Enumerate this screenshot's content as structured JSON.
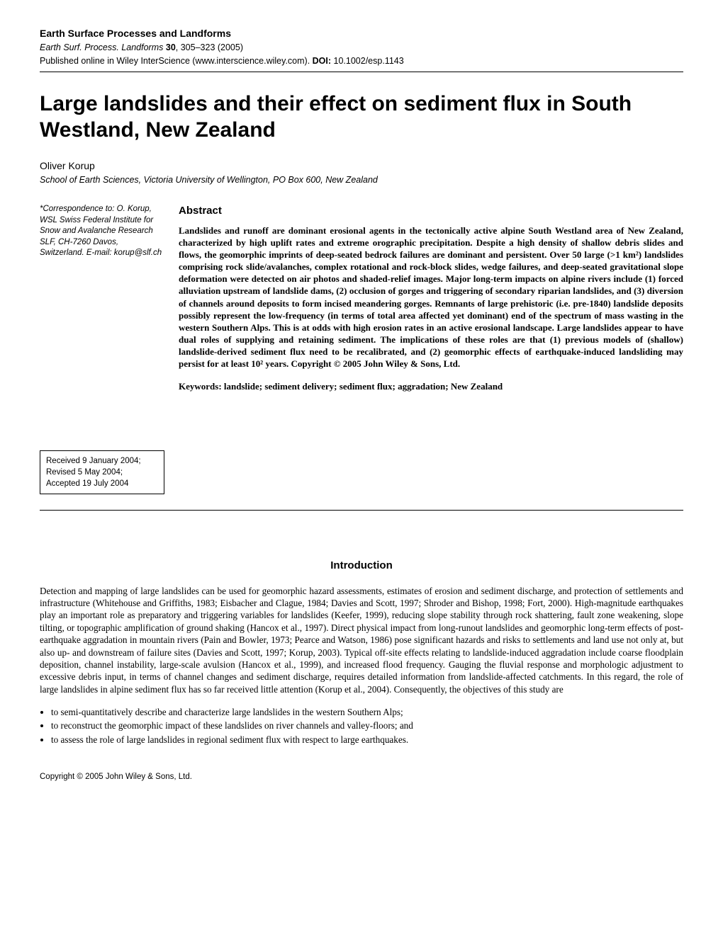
{
  "header": {
    "journal": "Earth Surface Processes and Landforms",
    "citation_journal": "Earth Surf. Process. Landforms",
    "citation_vol": "30",
    "citation_pages": ", 305–323 (2005)",
    "pubinfo_prefix": "Published online in Wiley InterScience (www.interscience.wiley.com). ",
    "doi_label": "DOI:",
    "doi": " 10.1002/esp.1143"
  },
  "title": "Large landslides and their effect on sediment flux in South Westland, New Zealand",
  "author": "Oliver Korup",
  "affiliation": "School of Earth Sciences, Victoria University of Wellington, PO Box 600, New Zealand",
  "correspondence": "*Correspondence to: O. Korup, WSL Swiss Federal Institute for Snow and Avalanche Research SLF, CH-7260 Davos, Switzerland. E-mail: korup@slf.ch",
  "dates": {
    "received": "Received 9 January 2004;",
    "revised": "Revised 5 May 2004;",
    "accepted": "Accepted 19 July 2004"
  },
  "abstract_heading": "Abstract",
  "abstract": "Landslides and runoff are dominant erosional agents in the tectonically active alpine South Westland area of New Zealand, characterized by high uplift rates and extreme orographic precipitation. Despite a high density of shallow debris slides and flows, the geomorphic imprints of deep-seated bedrock failures are dominant and persistent. Over 50 large (>1 km²) landslides comprising rock slide/avalanches, complex rotational and rock-block slides, wedge failures, and deep-seated gravitational slope deformation were detected on air photos and shaded-relief images. Major long-term impacts on alpine rivers include (1) forced alluviation upstream of landslide dams, (2) occlusion of gorges and triggering of secondary riparian landslides, and (3) diversion of channels around deposits to form incised meandering gorges. Remnants of large prehistoric (i.e. pre-1840) landslide deposits possibly represent the low-frequency (in terms of total area affected yet dominant) end of the spectrum of mass wasting in the western Southern Alps. This is at odds with high erosion rates in an active erosional landscape. Large landslides appear to have dual roles of supplying and retaining sediment. The implications of these roles are that (1) previous models of (shallow) landslide-derived sediment flux need to be recalibrated, and (2) geomorphic effects of earthquake-induced landsliding may persist for at least 10² years. Copyright © 2005 John Wiley & Sons, Ltd.",
  "keywords": "Keywords: landslide; sediment delivery; sediment flux; aggradation; New Zealand",
  "intro_heading": "Introduction",
  "intro_p1": "Detection and mapping of large landslides can be used for geomorphic hazard assessments, estimates of erosion and sediment discharge, and protection of settlements and infrastructure (Whitehouse and Griffiths, 1983; Eisbacher and Clague, 1984; Davies and Scott, 1997; Shroder and Bishop, 1998; Fort, 2000). High-magnitude earthquakes play an important role as preparatory and triggering variables for landslides (Keefer, 1999), reducing slope stability through rock shattering, fault zone weakening, slope tilting, or topographic amplification of ground shaking (Hancox et al., 1997). Direct physical impact from long-runout landslides and geomorphic long-term effects of post-earthquake aggradation in mountain rivers (Pain and Bowler, 1973; Pearce and Watson, 1986) pose significant hazards and risks to settlements and land use not only at, but also up- and downstream of failure sites (Davies and Scott, 1997; Korup, 2003). Typical off-site effects relating to landslide-induced aggradation include coarse floodplain deposition, channel instability, large-scale avulsion (Hancox et al., 1999), and increased flood frequency. Gauging the fluvial response and morphologic adjustment to excessive debris input, in terms of channel changes and sediment discharge, requires detailed information from landslide-affected catchments. In this regard, the role of large landslides in alpine sediment flux has so far received little attention (Korup et al., 2004). Consequently, the objectives of this study are",
  "bullets": [
    "to semi-quantitatively describe and characterize large landslides in the western Southern Alps;",
    "to reconstruct the geomorphic impact of these landslides on river channels and valley-floors; and",
    "to assess the role of large landslides in regional sediment flux with respect to large earthquakes."
  ],
  "footer": "Copyright © 2005 John Wiley & Sons, Ltd."
}
